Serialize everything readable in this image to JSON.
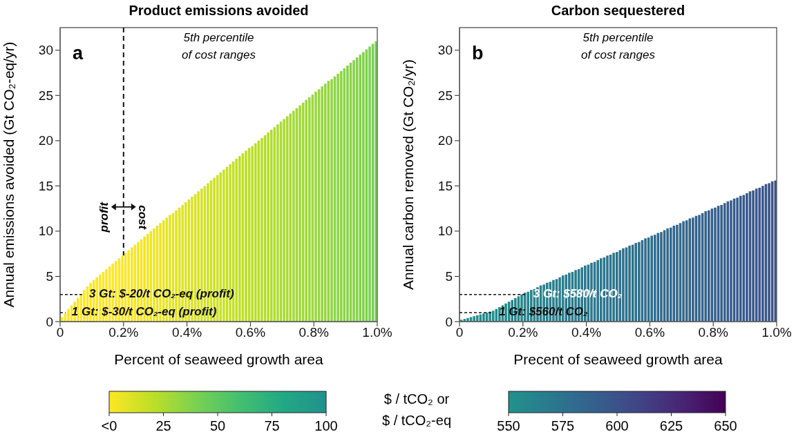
{
  "chart_data": [
    {
      "type": "bar",
      "title": "Product emissions avoided",
      "xlabel": "Percent of seaweed growth area",
      "ylabel": "Annual emissions avoided (Gt CO₂-eq/yr)",
      "x": [
        0.005,
        0.015,
        0.025,
        0.035,
        0.045,
        0.055,
        0.065,
        0.075,
        0.085,
        0.095,
        0.105,
        0.115,
        0.125,
        0.135,
        0.145,
        0.155,
        0.165,
        0.175,
        0.185,
        0.195,
        0.205,
        0.215,
        0.225,
        0.235,
        0.245,
        0.255,
        0.265,
        0.275,
        0.285,
        0.295,
        0.305,
        0.315,
        0.325,
        0.335,
        0.345,
        0.355,
        0.365,
        0.375,
        0.385,
        0.395,
        0.405,
        0.415,
        0.425,
        0.435,
        0.445,
        0.455,
        0.465,
        0.475,
        0.485,
        0.495,
        0.505,
        0.515,
        0.525,
        0.535,
        0.545,
        0.555,
        0.565,
        0.575,
        0.585,
        0.595,
        0.605,
        0.615,
        0.625,
        0.635,
        0.645,
        0.655,
        0.665,
        0.675,
        0.685,
        0.695,
        0.705,
        0.715,
        0.725,
        0.735,
        0.745,
        0.755,
        0.765,
        0.775,
        0.785,
        0.795,
        0.805,
        0.815,
        0.825,
        0.835,
        0.845,
        0.855,
        0.865,
        0.875,
        0.885,
        0.895,
        0.905,
        0.915,
        0.925,
        0.935,
        0.945,
        0.955,
        0.965,
        0.975,
        0.985,
        0.995
      ],
      "values": [
        0.5,
        0.9,
        1.4,
        1.8,
        2.2,
        2.6,
        3.0,
        3.5,
        3.9,
        4.3,
        4.6,
        4.9,
        5.2,
        5.5,
        5.8,
        6.1,
        6.4,
        6.7,
        7.0,
        7.3,
        7.6,
        7.9,
        8.2,
        8.5,
        8.8,
        9.1,
        9.4,
        9.7,
        10.0,
        10.3,
        10.6,
        10.9,
        11.2,
        11.5,
        11.8,
        12.0,
        12.3,
        12.6,
        12.9,
        13.2,
        13.5,
        13.8,
        14.1,
        14.4,
        14.7,
        15.0,
        15.3,
        15.6,
        15.9,
        16.2,
        16.5,
        16.8,
        17.1,
        17.4,
        17.7,
        18.0,
        18.3,
        18.6,
        18.9,
        19.2,
        19.4,
        19.7,
        20.0,
        20.3,
        20.6,
        20.9,
        21.2,
        21.5,
        21.8,
        22.1,
        22.4,
        22.7,
        23.0,
        23.3,
        23.6,
        23.9,
        24.2,
        24.5,
        24.8,
        25.1,
        25.4,
        25.7,
        26.0,
        26.3,
        26.6,
        26.8,
        27.1,
        27.4,
        27.7,
        28.0,
        28.3,
        28.6,
        28.9,
        29.2,
        29.5,
        29.8,
        30.1,
        30.4,
        30.7,
        31.0
      ],
      "cvalues": [
        0,
        0,
        0,
        0,
        0,
        0,
        0,
        0,
        0,
        0,
        0,
        0,
        0,
        0,
        0,
        0,
        0,
        0,
        0,
        0,
        1,
        1,
        2,
        2,
        3,
        3,
        4,
        4,
        5,
        5,
        6,
        6,
        7,
        7,
        8,
        8,
        9,
        9,
        10,
        10,
        11,
        11,
        12,
        12,
        13,
        13,
        14,
        14,
        15,
        15,
        16,
        16,
        17,
        17,
        18,
        18,
        19,
        19,
        20,
        20,
        21,
        21,
        22,
        22,
        23,
        23,
        24,
        24,
        25,
        25,
        26,
        26,
        27,
        27,
        28,
        28,
        29,
        29,
        30,
        30,
        31,
        31,
        32,
        32,
        33,
        33,
        34,
        34,
        35,
        35,
        36,
        36,
        37,
        37,
        38,
        38,
        39,
        39,
        40,
        40
      ],
      "xlim": [
        0,
        1
      ],
      "xticks": [
        {
          "value": 0,
          "label": "0"
        },
        {
          "value": 0.2,
          "label": "0.2%"
        },
        {
          "value": 0.4,
          "label": "0.4%"
        },
        {
          "value": 0.6,
          "label": "0.6%"
        },
        {
          "value": 0.8,
          "label": "0.8%"
        },
        {
          "value": 1,
          "label": "1.0%"
        }
      ],
      "ylim": [
        0,
        32.5
      ],
      "yticks": [
        0,
        5,
        10,
        15,
        20,
        25,
        30
      ],
      "clim": [
        0,
        100
      ],
      "cticks": [
        {
          "value": 0,
          "label": "<0"
        },
        25,
        50,
        75,
        100
      ],
      "clabel": "$ / tCO₂ or\n$ / tCO₂-eq",
      "ref_lines": [
        {
          "axis": "x",
          "value": 0.2,
          "line_style": "dashed"
        }
      ],
      "annotations": [
        "a",
        "5th percentile\nof cost ranges",
        {
          "text": "3 Gt: $-20/t CO₂-eq (profit)",
          "x": 0.072,
          "y": 3
        },
        {
          "text": "1 Gt: $-30/t CO₂-eq (profit)",
          "x": 0.017,
          "y": 1
        },
        "profit",
        "cost"
      ]
    },
    {
      "type": "bar",
      "title": "Carbon sequestered",
      "xlabel": "Precent of seaweed growth area",
      "ylabel": "Annual carbon removed (Gt CO₂/yr)",
      "x": [
        0.005,
        0.015,
        0.025,
        0.035,
        0.045,
        0.055,
        0.065,
        0.075,
        0.085,
        0.095,
        0.105,
        0.115,
        0.125,
        0.135,
        0.145,
        0.155,
        0.165,
        0.175,
        0.185,
        0.195,
        0.205,
        0.215,
        0.225,
        0.235,
        0.245,
        0.255,
        0.265,
        0.275,
        0.285,
        0.295,
        0.305,
        0.315,
        0.325,
        0.335,
        0.345,
        0.355,
        0.365,
        0.375,
        0.385,
        0.395,
        0.405,
        0.415,
        0.425,
        0.435,
        0.445,
        0.455,
        0.465,
        0.475,
        0.485,
        0.495,
        0.505,
        0.515,
        0.525,
        0.535,
        0.545,
        0.555,
        0.565,
        0.575,
        0.585,
        0.595,
        0.605,
        0.615,
        0.625,
        0.635,
        0.645,
        0.655,
        0.665,
        0.675,
        0.685,
        0.695,
        0.705,
        0.715,
        0.725,
        0.735,
        0.745,
        0.755,
        0.765,
        0.775,
        0.785,
        0.795,
        0.805,
        0.815,
        0.825,
        0.835,
        0.845,
        0.855,
        0.865,
        0.875,
        0.885,
        0.895,
        0.905,
        0.915,
        0.925,
        0.935,
        0.945,
        0.955,
        0.965,
        0.975,
        0.985,
        0.995
      ],
      "values": [
        0.2,
        0.3,
        0.4,
        0.5,
        0.6,
        0.7,
        0.8,
        0.9,
        1.0,
        1.1,
        1.2,
        1.4,
        1.6,
        1.8,
        2.0,
        2.2,
        2.4,
        2.6,
        2.8,
        3.0,
        3.2,
        3.3,
        3.5,
        3.6,
        3.8,
        4.0,
        4.1,
        4.3,
        4.4,
        4.6,
        4.7,
        4.9,
        5.1,
        5.2,
        5.4,
        5.5,
        5.7,
        5.8,
        6.0,
        6.2,
        6.3,
        6.5,
        6.6,
        6.8,
        7.0,
        7.1,
        7.3,
        7.4,
        7.6,
        7.7,
        7.9,
        8.1,
        8.2,
        8.4,
        8.5,
        8.7,
        8.8,
        9.0,
        9.2,
        9.3,
        9.5,
        9.6,
        9.8,
        9.9,
        10.1,
        10.3,
        10.4,
        10.6,
        10.7,
        10.9,
        11.1,
        11.2,
        11.4,
        11.5,
        11.7,
        11.8,
        12.0,
        12.2,
        12.3,
        12.5,
        12.6,
        12.8,
        12.9,
        13.1,
        13.3,
        13.4,
        13.6,
        13.7,
        13.9,
        14.0,
        14.2,
        14.4,
        14.5,
        14.7,
        14.8,
        15.0,
        15.2,
        15.3,
        15.5,
        15.6
      ],
      "cvalues": [
        550,
        550,
        551,
        551,
        552,
        552,
        553,
        553,
        554,
        554,
        555,
        555,
        556,
        556,
        557,
        557,
        558,
        558,
        559,
        559,
        560,
        560,
        561,
        561,
        562,
        562,
        563,
        563,
        564,
        564,
        565,
        565,
        566,
        566,
        567,
        567,
        568,
        568,
        569,
        569,
        570,
        570,
        571,
        571,
        572,
        572,
        573,
        573,
        574,
        574,
        575,
        575,
        576,
        576,
        577,
        577,
        578,
        578,
        579,
        579,
        580,
        580,
        581,
        581,
        582,
        582,
        583,
        583,
        584,
        584,
        585,
        585,
        586,
        586,
        587,
        587,
        588,
        588,
        589,
        589,
        590,
        590,
        591,
        591,
        592,
        592,
        593,
        593,
        594,
        594,
        595,
        595,
        596,
        596,
        597,
        597,
        598,
        598,
        599,
        599
      ],
      "xlim": [
        0,
        1
      ],
      "xticks": [
        {
          "value": 0,
          "label": "0"
        },
        {
          "value": 0.2,
          "label": "0.2%"
        },
        {
          "value": 0.4,
          "label": "0.4%"
        },
        {
          "value": 0.6,
          "label": "0.6%"
        },
        {
          "value": 0.8,
          "label": "0.8%"
        },
        {
          "value": 1,
          "label": "1.0%"
        }
      ],
      "ylim": [
        0,
        32.5
      ],
      "yticks": [
        0,
        5,
        10,
        15,
        20,
        25,
        30
      ],
      "clim": [
        550,
        650
      ],
      "cticks": [
        550,
        575,
        600,
        625,
        650
      ],
      "annotations": [
        "b",
        "5th percentile\nof cost ranges",
        {
          "text": "3 Gt: $580/t CO₂",
          "x": 0.213,
          "y": 3
        },
        {
          "text": "1 Gt: $560/t CO₂",
          "x": 0.105,
          "y": 1
        }
      ]
    }
  ]
}
